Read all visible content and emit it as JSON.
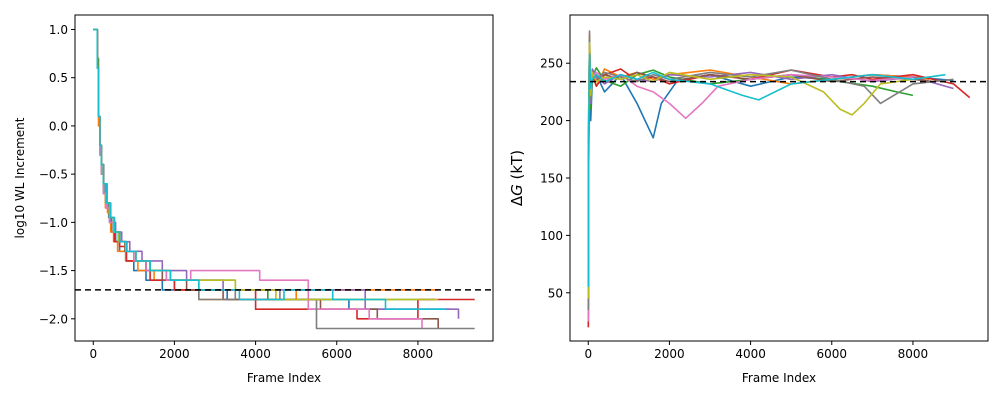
{
  "colors": [
    "#1f77b4",
    "#ff7f0e",
    "#2ca02c",
    "#d62728",
    "#9467bd",
    "#8c564b",
    "#e377c2",
    "#7f7f7f",
    "#bcbd22",
    "#17becf"
  ],
  "chart_data": [
    {
      "type": "line",
      "style": "step",
      "title": "",
      "xlabel": "Frame Index",
      "ylabel": "log10 WL Increment",
      "xlim": [
        -450,
        9850
      ],
      "ylim": [
        -2.23,
        1.15
      ],
      "xticks": [
        0,
        2000,
        4000,
        6000,
        8000
      ],
      "yticks": [
        -2.0,
        -1.5,
        -1.0,
        -0.5,
        0.0,
        0.5,
        1.0
      ],
      "ytick_labels": [
        "−2.0",
        "−1.5",
        "−1.0",
        "−0.5",
        "0.0",
        "0.5",
        "1.0"
      ],
      "reference_line": {
        "y": -1.7,
        "style": "dashed",
        "color": "#000000"
      },
      "series": [
        {
          "x": [
            0,
            100,
            130,
            160,
            200,
            250,
            300,
            380,
            450,
            550,
            650,
            800,
            1000,
            1300,
            1700,
            2300,
            3300,
            4400,
            6300,
            8800
          ],
          "y": [
            1.0,
            0.6,
            0.1,
            -0.2,
            -0.4,
            -0.6,
            -0.8,
            -0.95,
            -1.1,
            -1.2,
            -1.3,
            -1.4,
            -1.5,
            -1.6,
            -1.7,
            -1.7,
            -1.8,
            -1.8,
            -1.9,
            -1.9
          ]
        },
        {
          "x": [
            0,
            100,
            130,
            160,
            200,
            250,
            300,
            350,
            430,
            500,
            600,
            800,
            1100,
            1500,
            2000,
            2600,
            3600,
            5000,
            6600,
            8500
          ],
          "y": [
            1.0,
            0.6,
            0.0,
            -0.3,
            -0.5,
            -0.7,
            -0.85,
            -0.9,
            -1.1,
            -1.2,
            -1.3,
            -1.4,
            -1.5,
            -1.6,
            -1.7,
            -1.8,
            -1.8,
            -1.7,
            -1.7,
            -1.7
          ]
        },
        {
          "x": [
            0,
            100,
            130,
            160,
            200,
            250,
            320,
            400,
            500,
            650,
            800,
            1000,
            1300,
            1800,
            2500,
            3500,
            4300,
            5500,
            7000,
            8400
          ],
          "y": [
            1.0,
            0.7,
            0.1,
            -0.3,
            -0.5,
            -0.7,
            -0.8,
            -1.0,
            -1.1,
            -1.2,
            -1.3,
            -1.4,
            -1.5,
            -1.6,
            -1.6,
            -1.7,
            -1.8,
            -1.8,
            -1.8,
            -1.8
          ]
        },
        {
          "x": [
            0,
            100,
            130,
            160,
            200,
            250,
            330,
            420,
            520,
            650,
            820,
            1000,
            1400,
            2000,
            2900,
            4000,
            5100,
            6500,
            8000,
            9400
          ],
          "y": [
            1.0,
            0.6,
            0.1,
            -0.2,
            -0.4,
            -0.6,
            -0.85,
            -1.0,
            -1.2,
            -1.25,
            -1.4,
            -1.4,
            -1.6,
            -1.7,
            -1.7,
            -1.9,
            -1.9,
            -2.0,
            -1.8,
            -1.8
          ]
        },
        {
          "x": [
            0,
            100,
            130,
            160,
            200,
            260,
            340,
            430,
            550,
            700,
            900,
            1200,
            1700,
            2300,
            3200,
            4200,
            5300,
            6700,
            8000,
            9000
          ],
          "y": [
            1.0,
            0.6,
            0.1,
            -0.2,
            -0.4,
            -0.6,
            -0.8,
            -1.0,
            -1.1,
            -1.2,
            -1.3,
            -1.4,
            -1.5,
            -1.6,
            -1.7,
            -1.7,
            -1.7,
            -1.9,
            -1.9,
            -2.0
          ]
        },
        {
          "x": [
            0,
            100,
            130,
            160,
            200,
            250,
            320,
            400,
            500,
            620,
            780,
            1000,
            1300,
            1700,
            2300,
            3200,
            4300,
            5600,
            7000,
            8500
          ],
          "y": [
            1.0,
            0.6,
            0.1,
            -0.2,
            -0.4,
            -0.6,
            -0.8,
            -0.95,
            -1.1,
            -1.2,
            -1.3,
            -1.4,
            -1.5,
            -1.6,
            -1.7,
            -1.8,
            -1.8,
            -1.9,
            -2.0,
            -2.1
          ]
        },
        {
          "x": [
            0,
            100,
            130,
            160,
            200,
            250,
            320,
            400,
            500,
            620,
            800,
            1000,
            1300,
            1800,
            2400,
            3100,
            4100,
            5300,
            6800,
            8100
          ],
          "y": [
            1.0,
            0.6,
            0.1,
            -0.3,
            -0.5,
            -0.7,
            -0.85,
            -1.0,
            -1.1,
            -1.2,
            -1.3,
            -1.4,
            -1.5,
            -1.6,
            -1.5,
            -1.5,
            -1.6,
            -1.9,
            -2.0,
            -2.1
          ]
        },
        {
          "x": [
            0,
            100,
            130,
            160,
            200,
            250,
            330,
            420,
            520,
            660,
            830,
            1050,
            1400,
            1900,
            2600,
            3500,
            4600,
            5500,
            7000,
            9400
          ],
          "y": [
            1.0,
            0.6,
            0.1,
            -0.2,
            -0.4,
            -0.6,
            -0.8,
            -0.95,
            -1.1,
            -1.2,
            -1.3,
            -1.4,
            -1.5,
            -1.6,
            -1.8,
            -1.7,
            -1.8,
            -2.1,
            -2.1,
            -2.1
          ]
        },
        {
          "x": [
            0,
            100,
            130,
            160,
            200,
            250,
            320,
            400,
            500,
            630,
            800,
            1050,
            1400,
            1900,
            2600,
            3500,
            4500,
            5600,
            7000,
            8500
          ],
          "y": [
            1.0,
            0.6,
            0.1,
            -0.2,
            -0.4,
            -0.6,
            -0.8,
            -0.95,
            -1.1,
            -1.2,
            -1.3,
            -1.4,
            -1.5,
            -1.6,
            -1.6,
            -1.7,
            -1.8,
            -1.8,
            -1.8,
            -1.8
          ]
        },
        {
          "x": [
            0,
            100,
            130,
            160,
            200,
            250,
            330,
            420,
            520,
            650,
            820,
            1050,
            1400,
            1900,
            2600,
            3600,
            4700,
            5900,
            7200,
            8700
          ],
          "y": [
            1.0,
            0.6,
            0.1,
            -0.2,
            -0.4,
            -0.6,
            -0.8,
            -0.95,
            -1.1,
            -1.2,
            -1.3,
            -1.4,
            -1.5,
            -1.6,
            -1.7,
            -1.8,
            -1.7,
            -1.8,
            -1.9,
            -1.9
          ]
        }
      ]
    },
    {
      "type": "line",
      "title": "",
      "xlabel": "Frame Index",
      "ylabel_prefix": "Δ",
      "ylabel_var": "G",
      "ylabel_suffix": " (kT)",
      "xlim": [
        -450,
        9850
      ],
      "ylim": [
        8,
        292
      ],
      "xticks": [
        0,
        2000,
        4000,
        6000,
        8000
      ],
      "yticks": [
        50,
        100,
        150,
        200,
        250
      ],
      "reference_line": {
        "y": 234,
        "style": "dashed",
        "color": "#000000"
      },
      "series": [
        {
          "x": [
            0,
            10,
            30,
            60,
            100,
            200,
            400,
            800,
            1200,
            1400,
            1600,
            1800,
            2200,
            3000,
            4000,
            5000,
            6000,
            7000,
            8000,
            9000
          ],
          "y": [
            30,
            160,
            250,
            200,
            235,
            240,
            225,
            240,
            215,
            200,
            185,
            215,
            235,
            240,
            230,
            238,
            236,
            240,
            238,
            235
          ]
        },
        {
          "x": [
            0,
            10,
            30,
            60,
            100,
            200,
            400,
            800,
            1200,
            1600,
            2000,
            3000,
            4000,
            5000,
            6000,
            7000,
            8000,
            8400
          ],
          "y": [
            20,
            200,
            275,
            220,
            240,
            230,
            245,
            238,
            242,
            236,
            240,
            244,
            238,
            232,
            236,
            240,
            238,
            236
          ]
        },
        {
          "x": [
            0,
            10,
            30,
            60,
            100,
            200,
            400,
            800,
            1200,
            1600,
            2000,
            3000,
            4000,
            5000,
            6000,
            7000,
            7600,
            8000
          ],
          "y": [
            50,
            210,
            270,
            210,
            238,
            246,
            235,
            230,
            240,
            244,
            238,
            232,
            236,
            240,
            235,
            230,
            225,
            222
          ]
        },
        {
          "x": [
            0,
            10,
            30,
            60,
            100,
            200,
            400,
            800,
            1200,
            1600,
            2000,
            3000,
            4000,
            5000,
            6000,
            6500,
            7000,
            8000,
            9000,
            9400
          ],
          "y": [
            20,
            180,
            260,
            225,
            240,
            230,
            240,
            245,
            235,
            238,
            232,
            240,
            236,
            244,
            238,
            240,
            236,
            240,
            232,
            220
          ]
        },
        {
          "x": [
            0,
            10,
            30,
            60,
            100,
            200,
            400,
            800,
            1200,
            1600,
            2000,
            3000,
            4000,
            5000,
            6000,
            7000,
            8000,
            9000
          ],
          "y": [
            40,
            190,
            270,
            215,
            245,
            238,
            232,
            240,
            236,
            234,
            240,
            238,
            242,
            236,
            240,
            234,
            238,
            228
          ]
        },
        {
          "x": [
            0,
            10,
            30,
            60,
            100,
            200,
            400,
            800,
            1200,
            1600,
            2000,
            3000,
            4000,
            5000,
            6000,
            7000,
            8000,
            8500
          ],
          "y": [
            60,
            200,
            265,
            220,
            240,
            235,
            240,
            236,
            242,
            238,
            234,
            240,
            236,
            240,
            234,
            238,
            236,
            234
          ]
        },
        {
          "x": [
            0,
            10,
            30,
            60,
            100,
            200,
            400,
            800,
            1200,
            1600,
            2000,
            2400,
            2800,
            3200,
            4000,
            5000,
            6000,
            7000,
            8000
          ],
          "y": [
            25,
            195,
            262,
            225,
            238,
            242,
            236,
            240,
            230,
            225,
            215,
            202,
            215,
            230,
            236,
            240,
            238,
            235,
            238
          ]
        },
        {
          "x": [
            0,
            10,
            30,
            60,
            100,
            200,
            400,
            800,
            1200,
            1600,
            2000,
            3000,
            4000,
            5000,
            6000,
            6800,
            7200,
            8000,
            9000
          ],
          "y": [
            35,
            185,
            278,
            218,
            240,
            236,
            242,
            238,
            234,
            240,
            236,
            242,
            238,
            244,
            236,
            230,
            215,
            232,
            236
          ]
        },
        {
          "x": [
            0,
            10,
            30,
            60,
            100,
            200,
            400,
            800,
            1200,
            1600,
            2000,
            3000,
            4000,
            5000,
            5800,
            6200,
            6500,
            6800,
            7200,
            8000
          ],
          "y": [
            45,
            205,
            268,
            222,
            242,
            234,
            238,
            236,
            240,
            234,
            242,
            236,
            240,
            238,
            225,
            210,
            205,
            215,
            232,
            236
          ]
        },
        {
          "x": [
            0,
            10,
            30,
            60,
            100,
            200,
            400,
            800,
            1200,
            1600,
            2000,
            3000,
            3800,
            4200,
            5000,
            6000,
            7000,
            8000,
            8800
          ],
          "y": [
            55,
            190,
            258,
            228,
            236,
            240,
            234,
            240,
            236,
            242,
            236,
            232,
            222,
            218,
            232,
            236,
            240,
            236,
            240
          ]
        }
      ]
    }
  ]
}
